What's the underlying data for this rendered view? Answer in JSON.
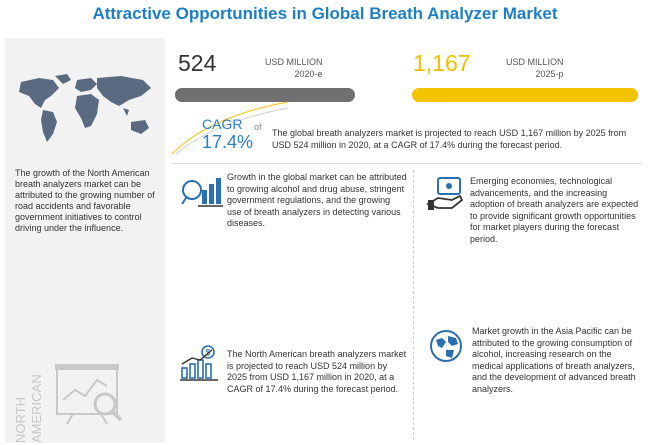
{
  "title": "Attractive Opportunities in Global Breath Analyzer Market",
  "colors": {
    "title": "#1f7fc4",
    "accent_blue": "#2a7fbd",
    "bar_grey": "#707070",
    "bar_yellow": "#f5c400"
  },
  "market_2020": {
    "value": "524",
    "unit": "USD MILLION",
    "year": "2020-e",
    "bar_fill_fraction": 1.0
  },
  "market_2025": {
    "value": "1,167",
    "unit": "USD MILLION",
    "year": "2025-p",
    "bar_fill_fraction": 1.0
  },
  "cagr": {
    "label": "CAGR",
    "value": "17.4%",
    "of": "of",
    "description": "The global breath analyzers market is projected to reach USD 1,167 million by 2025 from USD 524 million in 2020, at a CAGR of 17.4% during the forecast period."
  },
  "left_panel": {
    "text": "The growth of the North American breath analyzers market can be attributed to the growing number of road accidents and favorable government initiatives to control driving under the influence.",
    "region_label_line1": "NORTH",
    "region_label_line2": "AMERICAN",
    "map_icon": "world-map-icon",
    "chart_icon": "magnifier-chart-icon"
  },
  "blocks": {
    "growth": {
      "icon": "growth-chart-icon",
      "text": "Growth in the global market can be attributed to growing alcohol and drug abuse, stringent government regulations, and the growing use of breath analyzers in detecting various diseases."
    },
    "emerging": {
      "icon": "money-hand-icon",
      "text": "Emerging economies, technological advancements, and the increasing adoption of breath analyzers are expected to provide significant growth opportunities for market players during the forecast period."
    },
    "north_america": {
      "icon": "bar-growth-dollar-icon",
      "text": "The North American breath analyzers market is projected to reach USD 524 million by 2025 from USD 1,167 million in 2020, at a CAGR of 17.4% during the forecast period."
    },
    "asia": {
      "icon": "globe-icon",
      "text": "Market growth in the Asia Pacific can be attributed to the growing consumption of alcohol, increasing research on the medical applications of breath analyzers, and the development of advanced breath analyzers."
    }
  }
}
